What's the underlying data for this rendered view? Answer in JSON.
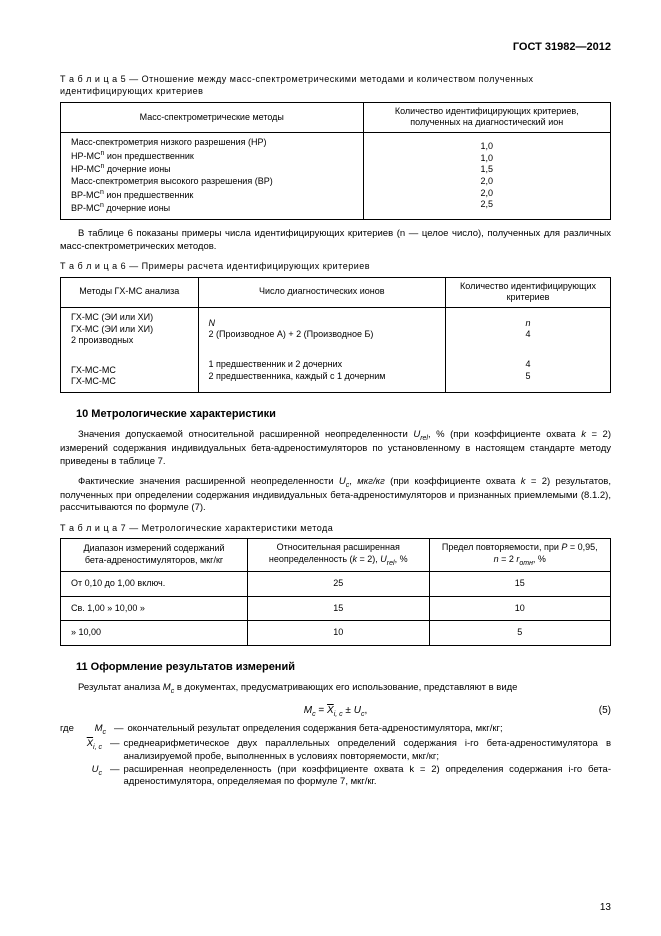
{
  "header": "ГОСТ 31982—2012",
  "table5": {
    "caption_label": "Т а б л и ц а  5",
    "caption_text": " —   Отношение между масс-спектрометрическими методами и количеством полученных идентифицирующих критериев",
    "col1_header": "Масс-спектрометрические методы",
    "col2_header": "Количество идентифицирующих критериев, полученных на диагностический ион",
    "rows": [
      {
        "m": "Масс-спектрометрия низкого разрешения (НР)",
        "v": "1,0"
      },
      {
        "m": "НР-МСⁿ ион предшественник",
        "v": "1,0"
      },
      {
        "m": "НР-МСⁿ дочерние ионы",
        "v": "1,5"
      },
      {
        "m": "Масс-спектрометрия высокого разрешения (ВР)",
        "v": "2,0"
      },
      {
        "m": "ВР-МСⁿ ион предшественник",
        "v": "2,0"
      },
      {
        "m": "ВР-МСⁿ дочерние ионы",
        "v": "2,5"
      }
    ]
  },
  "para1": "В таблице 6 показаны примеры числа идентифицирующих критериев (n —  целое число), полученных для различных масс-спектрометрических методов.",
  "table6": {
    "caption_label": "Т а б л и ц а  6",
    "caption_text": " —   Примеры расчета идентифицирующих критериев",
    "headers": [
      "Методы ГХ-МС анализа",
      "Число диагностических ионов",
      "Количество идентифицирующих критериев"
    ],
    "rows": [
      [
        "ГХ-МС (ЭИ или ХИ)",
        "N",
        "n"
      ],
      [
        "ГХ-МС (ЭИ или ХИ) 2 производных",
        "2 (Производное А) + 2 (Производное Б)",
        "4"
      ],
      [
        "ГХ-МС-МС",
        "1 предшественник и 2 дочерних",
        "4"
      ],
      [
        "ГХ-МС-МС",
        "2 предшественника, каждый с 1 дочерним",
        "5"
      ]
    ]
  },
  "section10_title": "10   Метрологические характеристики",
  "para2": "Значения допускаемой относительной расширенной неопределенности Uᵣₑₗ, % (при коэффициенте охвата k = 2) измерений содержания индивидуальных бета-адреностимуляторов по установленному в настоящем стандарте методу приведены в таблице 7.",
  "para3": "Фактические  значения  расширенной  неопределенности  Uc,  мкг/кг  (при  коэффициенте  охвата k = 2) результатов, полученных при определении содержания индивидуальных бета-адреностимуляторов и признанных приемлемыми (8.1.2), рассчитываются по формуле (7).",
  "table7": {
    "caption_label": "Т а б л и ц а  7",
    "caption_text": " —   Метрологические характеристики метода",
    "headers": [
      "Диапазон измерений содержаний бета-адреностимуляторов, мкг/кг",
      "Относительная расширенная неопределенность (k = 2), Uᵣₑₗ, %",
      "Предел повторяемости, при P = 0,95, n = 2 rотн, %"
    ],
    "rows": [
      [
        "От  0,10 до  1,00  включ.",
        "25",
        "15"
      ],
      [
        "Св.  1,00  »  10,00     »",
        "15",
        "10"
      ],
      [
        "»  10,00",
        "10",
        "5"
      ]
    ]
  },
  "section11_title": "11   Оформление результатов измерений",
  "para4": "Результат анализа Mc в документах, предусматривающих его использование, представляют в виде",
  "equation": "Mc = X̄ᵢ, c ± Uc,",
  "eq_num": "(5)",
  "where_intro": "где",
  "where": [
    {
      "sym": "Mc",
      "def": "окончательный результат определения содержания бета-адреностимулятора, мкг/кг;"
    },
    {
      "sym": "X̄ᵢ, c",
      "def": "среднеарифметическое двух параллельных определений содержания i-го бета-адреностимулятора в анализируемой пробе, выполненных в условиях повторяемости, мкг/кг;"
    },
    {
      "sym": "Uc",
      "def": "расширенная неопределенность (при коэффициенте охвата  k = 2)  определения  содержания i-го бета-адреностимулятора, определяемая по формуле 7, мкг/кг."
    }
  ],
  "page_num": "13"
}
